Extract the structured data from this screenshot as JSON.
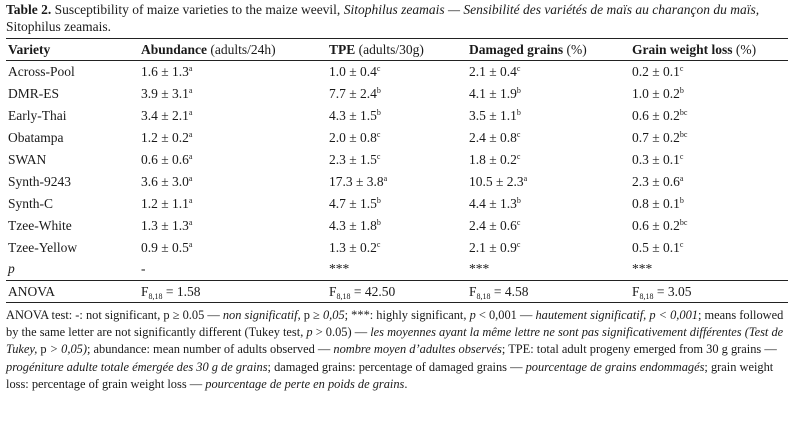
{
  "caption": {
    "label": "Table 2.",
    "text_en": " Susceptibility of maize varieties to the maize weevil, ",
    "species_it": "Sitophilus zeamais",
    "text_fr": " — Sensibilité des variétés de maïs au charançon du maïs, ",
    "species_fr": "Sitophilus zeamais",
    "end": "."
  },
  "columns": [
    {
      "label": "Variety",
      "unit": ""
    },
    {
      "label": "Abundance",
      "unit": " (adults/24h)"
    },
    {
      "label": "TPE",
      "unit": " (adults/30g)"
    },
    {
      "label": "Damaged grains",
      "unit": " (%)"
    },
    {
      "label": "Grain weight loss",
      "unit": " (%)"
    }
  ],
  "rows": [
    {
      "variety": "Across-Pool",
      "cells": [
        [
          "1.6 ± 1.3",
          "a"
        ],
        [
          "1.0 ± 0.4",
          "c"
        ],
        [
          "2.1 ± 0.4",
          "c"
        ],
        [
          "0.2 ± 0.1",
          "c"
        ]
      ]
    },
    {
      "variety": "DMR-ES",
      "cells": [
        [
          "3.9 ± 3.1",
          "a"
        ],
        [
          "7.7 ± 2.4",
          "b"
        ],
        [
          "4.1 ± 1.9",
          "b"
        ],
        [
          "1.0 ± 0.2",
          "b"
        ]
      ]
    },
    {
      "variety": "Early-Thai",
      "cells": [
        [
          "3.4 ± 2.1",
          "a"
        ],
        [
          "4.3 ± 1.5",
          "b"
        ],
        [
          "3.5 ± 1.1",
          "b"
        ],
        [
          "0.6 ± 0.2",
          "bc"
        ]
      ]
    },
    {
      "variety": "Obatampa",
      "cells": [
        [
          "1.2 ± 0.2",
          "a"
        ],
        [
          "2.0 ± 0.8",
          "c"
        ],
        [
          "2.4 ± 0.8",
          "c"
        ],
        [
          "0.7 ± 0.2",
          "bc"
        ]
      ]
    },
    {
      "variety": "SWAN",
      "cells": [
        [
          "0.6 ± 0.6",
          "a"
        ],
        [
          "2.3 ± 1.5",
          "c"
        ],
        [
          "1.8 ± 0.2",
          "c"
        ],
        [
          "0.3 ± 0.1",
          "c"
        ]
      ]
    },
    {
      "variety": "Synth-9243",
      "cells": [
        [
          "3.6 ± 3.0",
          "a"
        ],
        [
          "17.3 ± 3.8",
          "a"
        ],
        [
          "10.5 ± 2.3",
          "a"
        ],
        [
          "2.3 ± 0.6",
          "a"
        ]
      ]
    },
    {
      "variety": "Synth-C",
      "cells": [
        [
          "1.2 ± 1.1",
          "a"
        ],
        [
          "4.7 ± 1.5",
          "b"
        ],
        [
          "4.4 ± 1.3",
          "b"
        ],
        [
          "0.8 ± 0.1",
          "b"
        ]
      ]
    },
    {
      "variety": "Tzee-White",
      "cells": [
        [
          "1.3 ± 1.3",
          "a"
        ],
        [
          "4.3 ± 1.8",
          "b"
        ],
        [
          "2.4 ± 0.6",
          "c"
        ],
        [
          "0.6 ± 0.2",
          "bc"
        ]
      ]
    },
    {
      "variety": "Tzee-Yellow",
      "cells": [
        [
          "0.9 ± 0.5",
          "a"
        ],
        [
          "1.3 ± 0.2",
          "c"
        ],
        [
          "2.1 ± 0.9",
          "c"
        ],
        [
          "0.5 ± 0.1",
          "c"
        ]
      ]
    }
  ],
  "p_row": {
    "label": "p",
    "values": [
      "-",
      "***",
      "***",
      "***"
    ]
  },
  "anova_row": {
    "label": "ANOVA",
    "f_symbol": "F",
    "df": "8,18",
    "values": [
      " = 1.58",
      " = 42.50",
      " = 4.58",
      " = 3.05"
    ]
  },
  "notes": [
    {
      "t": "ANOVA test: -: not significant, p ≥ 0.05 — ",
      "i": false
    },
    {
      "t": "non significatif",
      "i": true
    },
    {
      "t": ", p ≥ ",
      "i": false
    },
    {
      "t": "0,05",
      "i": true
    },
    {
      "t": "; ***: highly significant, ",
      "i": false
    },
    {
      "t": "p",
      "i": true
    },
    {
      "t": " < 0,001 — ",
      "i": false
    },
    {
      "t": "hautement significatif, p < 0,001",
      "i": true
    },
    {
      "t": "; means followed by the same letter are not significantly different (Tukey test, ",
      "i": false
    },
    {
      "t": "p",
      "i": true
    },
    {
      "t": " > 0.05) — ",
      "i": false
    },
    {
      "t": "les moyennes ayant la même lettre ne sont pas significativement différentes (Test de Tukey, ",
      "i": true
    },
    {
      "t": "p",
      "i": false
    },
    {
      "t": " > 0,05)",
      "i": true
    },
    {
      "t": "; abundance: mean number of adults observed — ",
      "i": false
    },
    {
      "t": "nombre moyen d’adultes observés",
      "i": true
    },
    {
      "t": "; TPE: total adult progeny emerged from 30 g grains — ",
      "i": false
    },
    {
      "t": "progéniture adulte totale émergée des 30 g de grains",
      "i": true
    },
    {
      "t": "; damaged grains: percentage of damaged grains — ",
      "i": false
    },
    {
      "t": "pourcentage de grains endommagés",
      "i": true
    },
    {
      "t": "; grain weight loss: percentage of grain weight loss — ",
      "i": false
    },
    {
      "t": "pourcentage de perte en poids de grains",
      "i": true
    },
    {
      "t": ".",
      "i": false
    }
  ]
}
